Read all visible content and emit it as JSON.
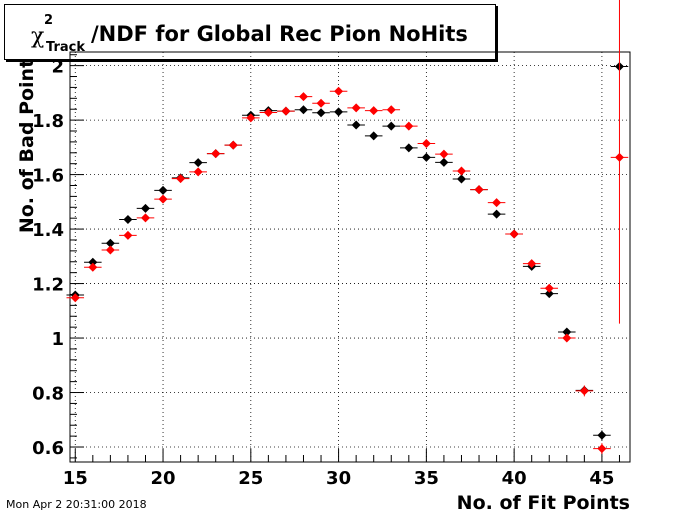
{
  "title": {
    "chi": "χ",
    "sup": "2",
    "sub": "Track",
    "rest": "/NDF for Global Rec Pion NoHits"
  },
  "timestamp": "Mon Apr  2 20:31:00 2018",
  "chart_data": {
    "type": "scatter",
    "xlabel": "No. of Fit Points",
    "ylabel": "No. of Bad Point",
    "xlim": [
      14.7,
      46.6
    ],
    "ylim": [
      0.545,
      2.05
    ],
    "x_ticks": [
      15,
      20,
      25,
      30,
      35,
      40,
      45
    ],
    "y_ticks": [
      0.6,
      0.8,
      1.0,
      1.2,
      1.4,
      1.6,
      1.8,
      2.0
    ],
    "x_tick_labels": [
      "15",
      "20",
      "25",
      "30",
      "35",
      "40",
      "45"
    ],
    "y_tick_labels": [
      "0.6",
      "0.8",
      "1",
      "1.2",
      "1.4",
      "1.6",
      "1.8",
      "2"
    ],
    "grid": true,
    "series": [
      {
        "color": "#000000",
        "x": [
          15,
          16,
          17,
          18,
          19,
          20,
          21,
          22,
          23,
          24,
          25,
          26,
          27,
          28,
          29,
          30,
          31,
          32,
          33,
          34,
          35,
          36,
          37,
          38,
          39,
          40,
          41,
          42,
          43,
          44,
          45,
          46
        ],
        "y": [
          1.158,
          1.278,
          1.348,
          1.435,
          1.476,
          1.542,
          1.588,
          1.644,
          1.677,
          1.708,
          1.818,
          1.835,
          1.833,
          1.838,
          1.827,
          1.83,
          1.782,
          1.742,
          1.778,
          1.698,
          1.663,
          1.645,
          1.584,
          1.545,
          1.455,
          1.382,
          1.263,
          1.163,
          1.022,
          0.808,
          0.643,
          1.997
        ],
        "yerr": [
          0.01,
          0.01,
          0.01,
          0.01,
          0.01,
          0.01,
          0.01,
          0.01,
          0.01,
          0.01,
          0.01,
          0.01,
          0.01,
          0.01,
          0.01,
          0.01,
          0.01,
          0.01,
          0.01,
          0.01,
          0.01,
          0.01,
          0.01,
          0.01,
          0.01,
          0.01,
          0.01,
          0.01,
          0.012,
          0.015,
          0.018,
          0.0
        ]
      },
      {
        "color": "#ff0000",
        "x": [
          15,
          16,
          17,
          18,
          19,
          20,
          21,
          22,
          23,
          24,
          25,
          26,
          27,
          28,
          29,
          30,
          31,
          32,
          33,
          34,
          35,
          36,
          37,
          38,
          39,
          40,
          41,
          42,
          43,
          44,
          45,
          46
        ],
        "y": [
          1.148,
          1.26,
          1.323,
          1.377,
          1.441,
          1.51,
          1.585,
          1.61,
          1.677,
          1.708,
          1.808,
          1.828,
          1.833,
          1.886,
          1.862,
          1.906,
          1.845,
          1.835,
          1.838,
          1.778,
          1.714,
          1.675,
          1.613,
          1.545,
          1.497,
          1.382,
          1.273,
          1.183,
          1.0,
          0.806,
          0.594,
          1.663
        ],
        "yerr": [
          0.01,
          0.01,
          0.01,
          0.01,
          0.01,
          0.01,
          0.01,
          0.01,
          0.01,
          0.01,
          0.01,
          0.01,
          0.01,
          0.01,
          0.01,
          0.01,
          0.01,
          0.01,
          0.01,
          0.01,
          0.01,
          0.01,
          0.01,
          0.01,
          0.01,
          0.01,
          0.01,
          0.01,
          0.012,
          0.02,
          0.02,
          0.61
        ]
      }
    ]
  }
}
